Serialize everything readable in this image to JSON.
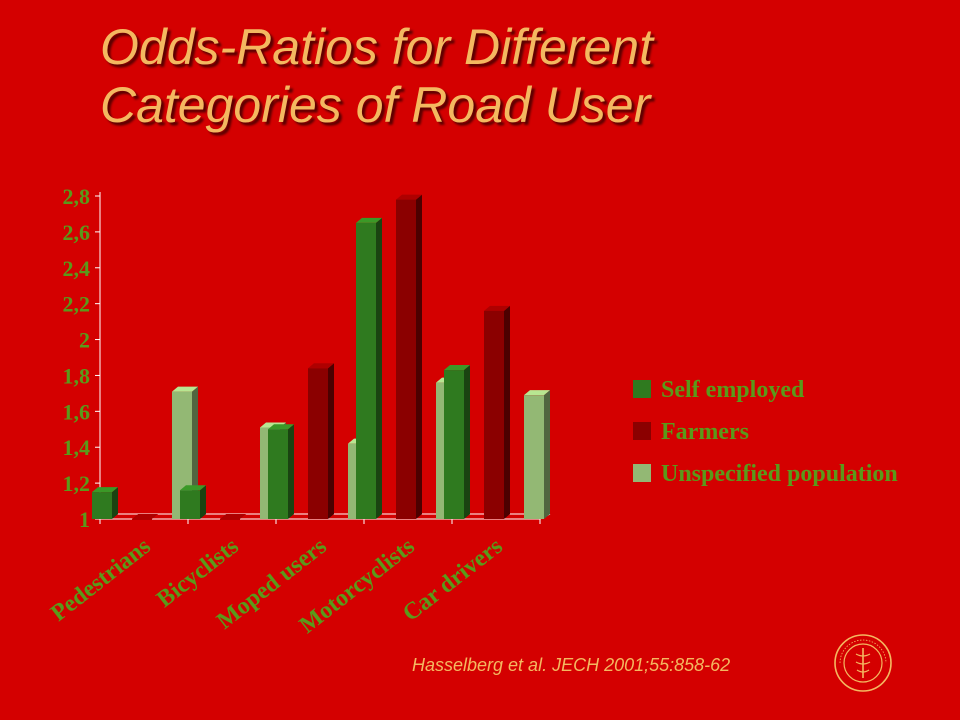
{
  "title_lines": [
    "Odds-Ratios for Different",
    "Categories of Road User"
  ],
  "citation": "Hasselberg et al. JECH 2001;55:858-62",
  "chart_data": {
    "type": "bar",
    "categories": [
      "Pedestrians",
      "Bicyclists",
      "Moped users",
      "Motorcyclists",
      "Car drivers"
    ],
    "series": [
      {
        "name": "Self employed",
        "values": [
          1.15,
          1.16,
          1.5,
          2.65,
          1.83
        ],
        "color": "#2f7a1f"
      },
      {
        "name": "Farmers",
        "values": [
          1.0,
          1.0,
          1.84,
          2.78,
          2.16
        ],
        "color": "#8b0000"
      },
      {
        "name": "Unspecified population",
        "values": [
          1.71,
          1.51,
          1.42,
          1.76,
          1.69
        ],
        "color": "#93b874"
      }
    ],
    "ylim": [
      1,
      2.8
    ],
    "yticks": [
      "1",
      "1,2",
      "1,4",
      "1,6",
      "1,8",
      "2",
      "2,2",
      "2,4",
      "2,6",
      "2,8"
    ],
    "legend_position": "right",
    "grid": false,
    "label_color": "#5a9a1a"
  }
}
